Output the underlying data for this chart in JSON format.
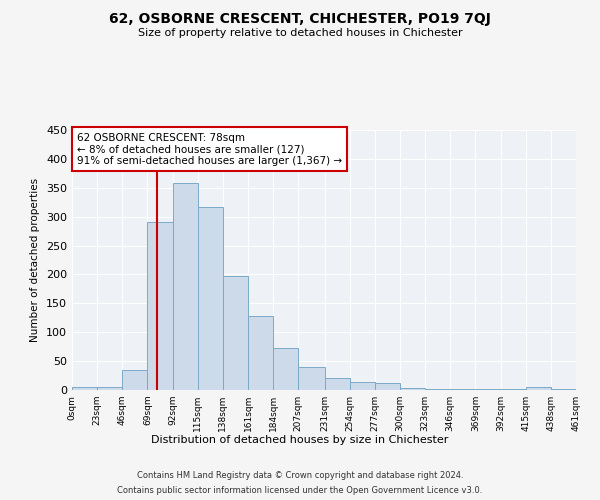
{
  "title": "62, OSBORNE CRESCENT, CHICHESTER, PO19 7QJ",
  "subtitle": "Size of property relative to detached houses in Chichester",
  "xlabel": "Distribution of detached houses by size in Chichester",
  "ylabel": "Number of detached properties",
  "bar_color": "#ccdaea",
  "bar_edge_color": "#7aaac8",
  "background_color": "#eef2f7",
  "grid_color": "#ffffff",
  "fig_background": "#f5f5f5",
  "vline_x": 78,
  "vline_color": "#cc0000",
  "bin_edges": [
    0,
    23,
    46,
    69,
    92,
    115,
    138,
    161,
    184,
    207,
    231,
    254,
    277,
    300,
    323,
    346,
    369,
    392,
    415,
    438,
    461
  ],
  "bar_heights": [
    5,
    5,
    35,
    290,
    358,
    317,
    198,
    128,
    72,
    40,
    20,
    14,
    12,
    3,
    2,
    2,
    2,
    2,
    5,
    2
  ],
  "tick_labels": [
    "0sqm",
    "23sqm",
    "46sqm",
    "69sqm",
    "92sqm",
    "115sqm",
    "138sqm",
    "161sqm",
    "184sqm",
    "207sqm",
    "231sqm",
    "254sqm",
    "277sqm",
    "300sqm",
    "323sqm",
    "346sqm",
    "369sqm",
    "392sqm",
    "415sqm",
    "438sqm",
    "461sqm"
  ],
  "ylim": [
    0,
    450
  ],
  "yticks": [
    0,
    50,
    100,
    150,
    200,
    250,
    300,
    350,
    400,
    450
  ],
  "annotation_title": "62 OSBORNE CRESCENT: 78sqm",
  "annotation_line1": "← 8% of detached houses are smaller (127)",
  "annotation_line2": "91% of semi-detached houses are larger (1,367) →",
  "annotation_box_color": "#ffffff",
  "annotation_box_edge": "#cc0000",
  "footer_line1": "Contains HM Land Registry data © Crown copyright and database right 2024.",
  "footer_line2": "Contains public sector information licensed under the Open Government Licence v3.0."
}
